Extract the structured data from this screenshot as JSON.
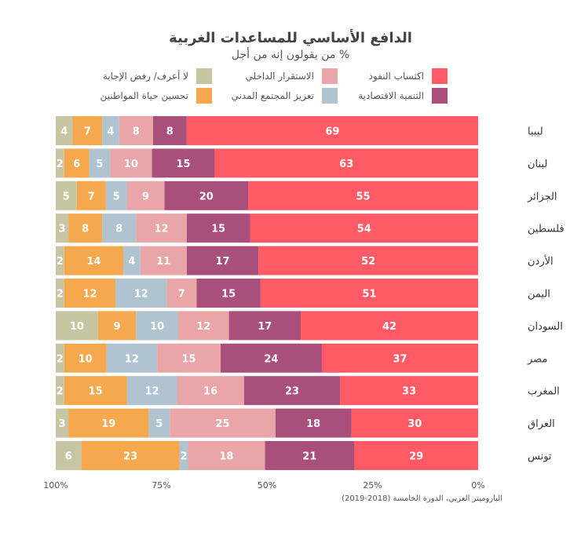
{
  "chart_data": {
    "type": "bar",
    "orientation": "horizontal-stacked",
    "title": "الدافع الأساسي للمساعدات الغربية",
    "subtitle": "% من يقولون إنه من أجل",
    "source": "الباروميتر العربي، الدورة الخامسة (2018-2019)",
    "xlim": [
      0,
      100
    ],
    "x_ticks": [
      "0%",
      "25%",
      "50%",
      "75%",
      "100%"
    ],
    "categories": [
      "ليبيا",
      "لبنان",
      "الجزائر",
      "فلسطين",
      "الأردن",
      "اليمن",
      "السودان",
      "مصر",
      "المغرب",
      "العراق",
      "تونس"
    ],
    "series": [
      {
        "name": "اكتساب النفوذ",
        "color": "#FF5A66",
        "values": [
          69,
          63,
          55,
          54,
          52,
          51,
          42,
          37,
          33,
          30,
          29
        ]
      },
      {
        "name": "التنمية الاقتصادية",
        "color": "#A84F7B",
        "values": [
          8,
          15,
          20,
          15,
          17,
          15,
          17,
          24,
          23,
          18,
          21
        ]
      },
      {
        "name": "الاستقرار الداخلي",
        "color": "#E9A5A7",
        "values": [
          8,
          10,
          9,
          12,
          11,
          7,
          12,
          15,
          16,
          25,
          18
        ]
      },
      {
        "name": "تعزيز المجتمع المدني",
        "color": "#AFC3D1",
        "values": [
          4,
          5,
          5,
          8,
          4,
          12,
          10,
          12,
          12,
          5,
          2
        ]
      },
      {
        "name": "تحسين حياة المواطنين",
        "color": "#F6A84E",
        "values": [
          7,
          6,
          7,
          8,
          14,
          12,
          9,
          10,
          15,
          19,
          23
        ]
      },
      {
        "name": "لا أعرف/ رفض الإجابة",
        "color": "#C8C6A2",
        "values": [
          4,
          2,
          5,
          3,
          2,
          2,
          10,
          2,
          2,
          3,
          6
        ]
      }
    ]
  }
}
